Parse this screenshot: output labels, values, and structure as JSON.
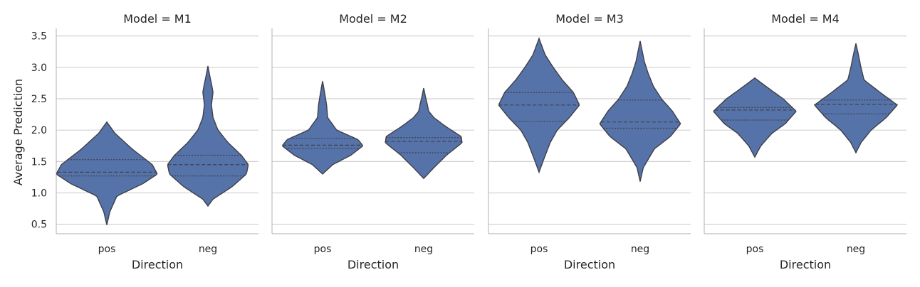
{
  "chart_data": {
    "type": "violin",
    "ylabel": "Average Prediction",
    "xlabel": "Direction",
    "categories": [
      "pos",
      "neg"
    ],
    "yticks": [
      "0.5",
      "1.0",
      "1.5",
      "2.0",
      "2.5",
      "3.0",
      "3.5"
    ],
    "ylim": [
      0.35,
      3.62
    ],
    "grid": true,
    "colors": {
      "violin": "#5573a8",
      "edge": "#3f3f48",
      "grid": "#d0d0d0",
      "axis": "#bdbdbd"
    },
    "panels": [
      {
        "title": "Model = M1",
        "violins": [
          {
            "category": "pos",
            "min": 0.49,
            "max": 2.13,
            "q1": 1.27,
            "median": 1.33,
            "q3": 1.53,
            "profile": [
              [
                0.49,
                0.0
              ],
              [
                0.7,
                0.06
              ],
              [
                0.95,
                0.2
              ],
              [
                1.15,
                0.72
              ],
              [
                1.3,
                1.0
              ],
              [
                1.45,
                0.9
              ],
              [
                1.7,
                0.5
              ],
              [
                1.95,
                0.16
              ],
              [
                2.13,
                0.0
              ]
            ]
          },
          {
            "category": "neg",
            "min": 0.79,
            "max": 3.02,
            "q1": 1.27,
            "median": 1.45,
            "q3": 1.6,
            "profile": [
              [
                0.79,
                0.0
              ],
              [
                0.9,
                0.1
              ],
              [
                1.1,
                0.48
              ],
              [
                1.3,
                0.76
              ],
              [
                1.45,
                0.8
              ],
              [
                1.6,
                0.66
              ],
              [
                1.8,
                0.4
              ],
              [
                2.0,
                0.2
              ],
              [
                2.2,
                0.1
              ],
              [
                2.4,
                0.07
              ],
              [
                2.6,
                0.1
              ],
              [
                2.7,
                0.08
              ],
              [
                2.85,
                0.04
              ],
              [
                3.02,
                0.0
              ]
            ]
          }
        ]
      },
      {
        "title": "Model = M2",
        "violins": [
          {
            "category": "pos",
            "min": 1.3,
            "max": 2.78,
            "q1": 1.71,
            "median": 1.76,
            "q3": 1.87,
            "profile": [
              [
                1.3,
                0.0
              ],
              [
                1.45,
                0.2
              ],
              [
                1.6,
                0.56
              ],
              [
                1.75,
                0.8
              ],
              [
                1.85,
                0.7
              ],
              [
                2.0,
                0.28
              ],
              [
                2.2,
                0.1
              ],
              [
                2.4,
                0.08
              ],
              [
                2.6,
                0.04
              ],
              [
                2.78,
                0.0
              ]
            ]
          },
          {
            "category": "neg",
            "min": 1.23,
            "max": 2.67,
            "q1": 1.64,
            "median": 1.82,
            "q3": 1.88,
            "profile": [
              [
                1.23,
                0.0
              ],
              [
                1.4,
                0.2
              ],
              [
                1.6,
                0.45
              ],
              [
                1.8,
                0.76
              ],
              [
                1.9,
                0.74
              ],
              [
                2.05,
                0.45
              ],
              [
                2.2,
                0.2
              ],
              [
                2.3,
                0.1
              ],
              [
                2.45,
                0.06
              ],
              [
                2.55,
                0.03
              ],
              [
                2.67,
                0.0
              ]
            ]
          }
        ]
      },
      {
        "title": "Model = M3",
        "violins": [
          {
            "category": "pos",
            "min": 1.33,
            "max": 3.46,
            "q1": 2.14,
            "median": 2.4,
            "q3": 2.6,
            "profile": [
              [
                1.33,
                0.0
              ],
              [
                1.55,
                0.1
              ],
              [
                1.8,
                0.22
              ],
              [
                2.0,
                0.36
              ],
              [
                2.2,
                0.6
              ],
              [
                2.4,
                0.8
              ],
              [
                2.6,
                0.68
              ],
              [
                2.8,
                0.46
              ],
              [
                3.0,
                0.28
              ],
              [
                3.2,
                0.12
              ],
              [
                3.46,
                0.0
              ]
            ]
          },
          {
            "category": "neg",
            "min": 1.18,
            "max": 3.42,
            "q1": 2.03,
            "median": 2.13,
            "q3": 2.48,
            "profile": [
              [
                1.18,
                0.0
              ],
              [
                1.4,
                0.06
              ],
              [
                1.7,
                0.28
              ],
              [
                1.9,
                0.6
              ],
              [
                2.1,
                0.8
              ],
              [
                2.3,
                0.64
              ],
              [
                2.5,
                0.42
              ],
              [
                2.7,
                0.26
              ],
              [
                2.9,
                0.16
              ],
              [
                3.1,
                0.08
              ],
              [
                3.42,
                0.0
              ]
            ]
          }
        ]
      },
      {
        "title": "Model = M4",
        "violins": [
          {
            "category": "pos",
            "min": 1.57,
            "max": 2.83,
            "q1": 2.16,
            "median": 2.32,
            "q3": 2.36,
            "profile": [
              [
                1.57,
                0.0
              ],
              [
                1.75,
                0.12
              ],
              [
                1.95,
                0.34
              ],
              [
                2.1,
                0.6
              ],
              [
                2.3,
                0.82
              ],
              [
                2.5,
                0.56
              ],
              [
                2.65,
                0.3
              ],
              [
                2.83,
                0.0
              ]
            ]
          },
          {
            "category": "neg",
            "min": 1.64,
            "max": 3.38,
            "q1": 2.26,
            "median": 2.41,
            "q3": 2.48,
            "profile": [
              [
                1.64,
                0.0
              ],
              [
                1.8,
                0.1
              ],
              [
                2.0,
                0.3
              ],
              [
                2.2,
                0.6
              ],
              [
                2.4,
                0.82
              ],
              [
                2.6,
                0.48
              ],
              [
                2.8,
                0.16
              ],
              [
                3.0,
                0.1
              ],
              [
                3.2,
                0.05
              ],
              [
                3.38,
                0.0
              ]
            ]
          }
        ]
      }
    ]
  }
}
